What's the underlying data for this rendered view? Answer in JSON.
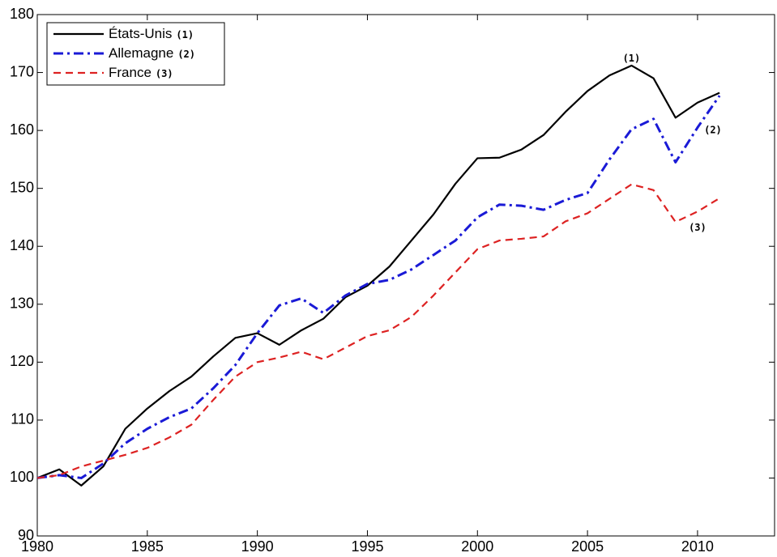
{
  "chart_data": {
    "type": "line",
    "x": [
      1980,
      1981,
      1982,
      1983,
      1984,
      1985,
      1986,
      1987,
      1988,
      1989,
      1990,
      1991,
      1992,
      1993,
      1994,
      1995,
      1996,
      1997,
      1998,
      1999,
      2000,
      2001,
      2002,
      2003,
      2004,
      2005,
      2006,
      2007,
      2008,
      2009,
      2010,
      2011
    ],
    "series": [
      {
        "name": "États-Unis",
        "tag": "(1)",
        "color": "#000000",
        "dash": "solid",
        "values": [
          100,
          101.5,
          98.7,
          102,
          108.5,
          112,
          115,
          117.5,
          121,
          124.2,
          125,
          123,
          125.5,
          127.5,
          131.2,
          133.2,
          136.5,
          141,
          145.5,
          150.8,
          155.2,
          155.3,
          156.7,
          159.2,
          163.2,
          166.8,
          169.5,
          171.2,
          169,
          162.2,
          164.8,
          166.5
        ]
      },
      {
        "name": "Allemagne",
        "tag": "(2)",
        "color": "#1a1ad6",
        "dash": "dashdot",
        "values": [
          100,
          100.5,
          100,
          102.5,
          106,
          108.5,
          110.5,
          112,
          115.5,
          119.5,
          125,
          129.8,
          131,
          128.5,
          131.5,
          133.5,
          134.2,
          136,
          138.5,
          141,
          145,
          147.2,
          147,
          146.3,
          148,
          149.2,
          155,
          160.2,
          162,
          154.5,
          160.5,
          166
        ]
      },
      {
        "name": "France",
        "tag": "(3)",
        "color": "#dd2222",
        "dash": "dashed",
        "values": [
          100,
          100.5,
          102,
          103,
          104,
          105.2,
          107,
          109.2,
          113.5,
          117.5,
          120,
          120.8,
          121.8,
          120.5,
          122.5,
          124.5,
          125.5,
          127.8,
          131.5,
          135.5,
          139.5,
          141,
          141.3,
          141.7,
          144.3,
          145.7,
          148.2,
          150.7,
          149.7,
          144.2,
          146,
          148.3
        ]
      }
    ],
    "annotations": [
      {
        "text": "(1)",
        "x": 2007,
        "y": 172.4
      },
      {
        "text": "(2)",
        "x": 2010.7,
        "y": 160
      },
      {
        "text": "(3)",
        "x": 2010,
        "y": 143.2
      }
    ],
    "xlim": [
      1980,
      2013.5
    ],
    "xticks": [
      1980,
      1985,
      1990,
      1995,
      2000,
      2005,
      2010
    ],
    "ylim": [
      90,
      180
    ],
    "yticks": [
      90,
      100,
      110,
      120,
      130,
      140,
      150,
      160,
      170,
      180
    ],
    "grid": false,
    "legend": "upper-left"
  }
}
